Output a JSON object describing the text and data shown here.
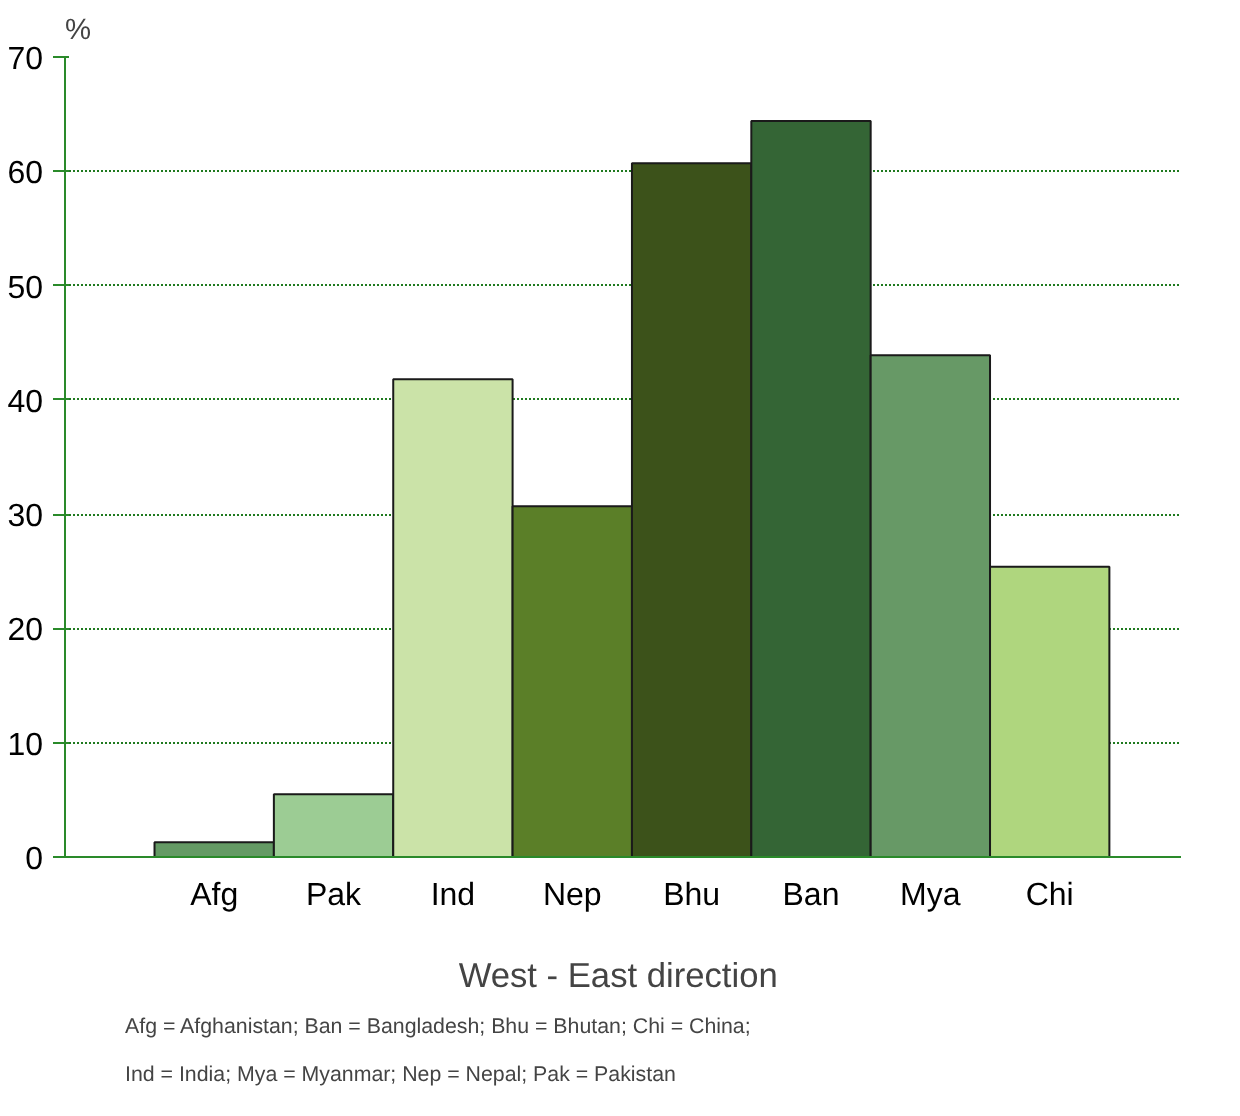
{
  "chart_data": {
    "type": "bar",
    "ylabel": "%",
    "xlabel": "West  - East direction",
    "categories": [
      "Afg",
      "Pak",
      "Ind",
      "Nep",
      "Bhu",
      "Ban",
      "Mya",
      "Chi"
    ],
    "values": [
      1.3,
      5.5,
      41.8,
      30.7,
      60.7,
      64.4,
      43.9,
      25.4
    ],
    "colors": [
      "#649a64",
      "#9ccc94",
      "#cbe3a8",
      "#5b7f28",
      "#3c521a",
      "#346535",
      "#679966",
      "#afd67e"
    ],
    "ylim": [
      0,
      70
    ],
    "yticks": [
      0,
      10,
      20,
      30,
      40,
      50,
      60,
      70
    ],
    "grid": "y",
    "annotations": [
      "Afg = Afghanistan; Ban = Bangladesh; Bhu = Bhutan; Chi = China;",
      "Ind = India; Mya = Myanmar; Nep = Nepal; Pak = Pakistan"
    ]
  }
}
